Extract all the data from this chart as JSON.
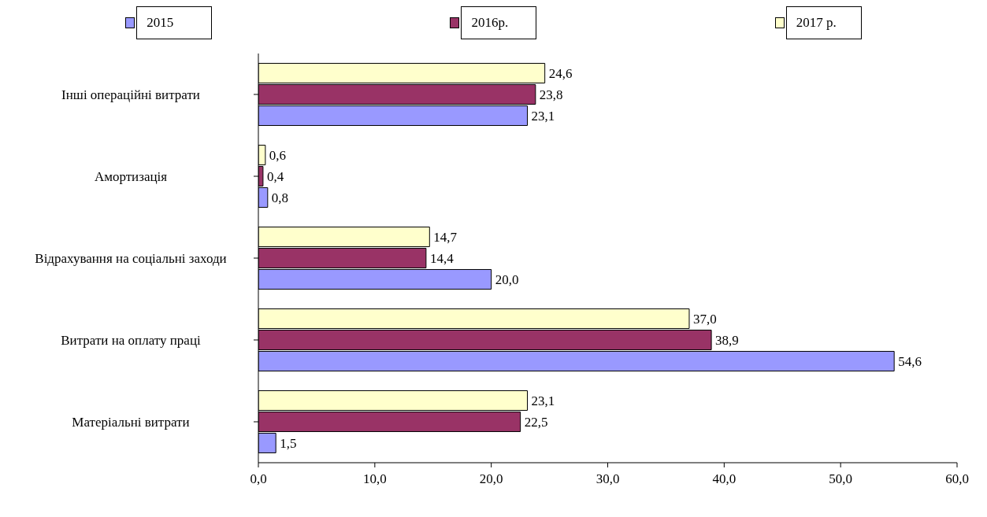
{
  "chart_data": {
    "type": "bar",
    "orientation": "horizontal",
    "categories": [
      "Інші операційні витрати",
      "Амортизація",
      "Відрахування на соціальні заходи",
      "Витрати на оплату праці",
      "Матеріальні витрати"
    ],
    "series": [
      {
        "name": "2015",
        "color": "#9999ff",
        "values": [
          23.1,
          0.8,
          20.0,
          54.6,
          1.5
        ],
        "value_labels": [
          "23,1",
          "0,8",
          "20,0",
          "54,6",
          "1,5"
        ]
      },
      {
        "name": "2016р.",
        "color": "#993366",
        "values": [
          23.8,
          0.4,
          14.4,
          38.9,
          22.5
        ],
        "value_labels": [
          "23,8",
          "0,4",
          "14,4",
          "38,9",
          "22,5"
        ]
      },
      {
        "name": "2017 р.",
        "color": "#ffffcc",
        "values": [
          24.6,
          0.6,
          14.7,
          37.0,
          23.1
        ],
        "value_labels": [
          "24,6",
          "0,6",
          "14,7",
          "37,0",
          "23,1"
        ]
      }
    ],
    "xlim": [
      0,
      60
    ],
    "xticks": [
      {
        "value": 0,
        "label": "0,0"
      },
      {
        "value": 10,
        "label": "10,0"
      },
      {
        "value": 20,
        "label": "20,0"
      },
      {
        "value": 30,
        "label": "30,0"
      },
      {
        "value": 40,
        "label": "40,0"
      },
      {
        "value": 50,
        "label": "50,0"
      },
      {
        "value": 60,
        "label": "60,0"
      }
    ],
    "grid": false,
    "legend": "top"
  }
}
